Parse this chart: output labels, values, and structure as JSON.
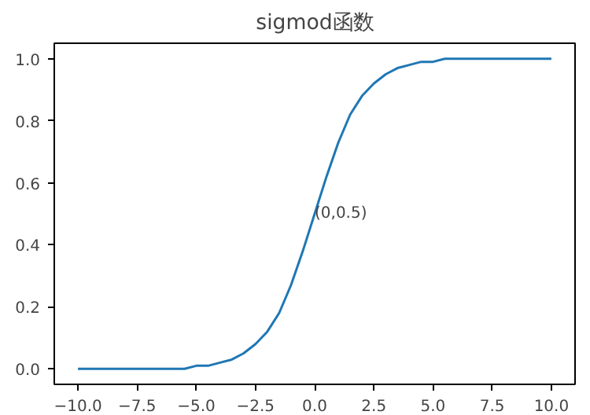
{
  "chart_data": {
    "type": "line",
    "title": "sigmod函数",
    "x": [
      -10,
      -9.5,
      -9,
      -8.5,
      -8,
      -7.5,
      -7,
      -6.5,
      -6,
      -5.5,
      -5,
      -4.5,
      -4,
      -3.5,
      -3,
      -2.5,
      -2,
      -1.5,
      -1,
      -0.5,
      0,
      0.5,
      1,
      1.5,
      2,
      2.5,
      3,
      3.5,
      4,
      4.5,
      5,
      5.5,
      6,
      6.5,
      7,
      7.5,
      8,
      8.5,
      9,
      9.5,
      10
    ],
    "series": [
      {
        "color": "#1f77b4",
        "values": [
          0.0,
          0.0,
          0.0,
          0.0,
          0.0,
          0.0,
          0.0,
          0.0,
          0.0,
          0.0,
          0.01,
          0.01,
          0.02,
          0.03,
          0.05,
          0.08,
          0.12,
          0.18,
          0.27,
          0.38,
          0.5,
          0.62,
          0.73,
          0.82,
          0.88,
          0.92,
          0.95,
          0.97,
          0.98,
          0.99,
          0.99,
          1.0,
          1.0,
          1.0,
          1.0,
          1.0,
          1.0,
          1.0,
          1.0,
          1.0,
          1.0
        ]
      }
    ],
    "annotations": [
      {
        "text": "(0,0.5)",
        "x": 0,
        "y": 0.5
      }
    ],
    "xlim": [
      -11,
      11
    ],
    "ylim": [
      -0.05,
      1.05
    ],
    "xticks": [
      {
        "value": -10,
        "label": "−10.0"
      },
      {
        "value": -7.5,
        "label": "−7.5"
      },
      {
        "value": -5,
        "label": "−5.0"
      },
      {
        "value": -2.5,
        "label": "−2.5"
      },
      {
        "value": 0,
        "label": "0.0"
      },
      {
        "value": 2.5,
        "label": "2.5"
      },
      {
        "value": 5,
        "label": "5.0"
      },
      {
        "value": 7.5,
        "label": "7.5"
      },
      {
        "value": 10,
        "label": "10.0"
      }
    ],
    "yticks": [
      {
        "value": 0,
        "label": "0.0"
      },
      {
        "value": 0.2,
        "label": "0.2"
      },
      {
        "value": 0.4,
        "label": "0.4"
      },
      {
        "value": 0.6,
        "label": "0.6"
      },
      {
        "value": 0.8,
        "label": "0.8"
      },
      {
        "value": 1.0,
        "label": "1.0"
      }
    ],
    "marker": "none",
    "line_style": "solid"
  }
}
